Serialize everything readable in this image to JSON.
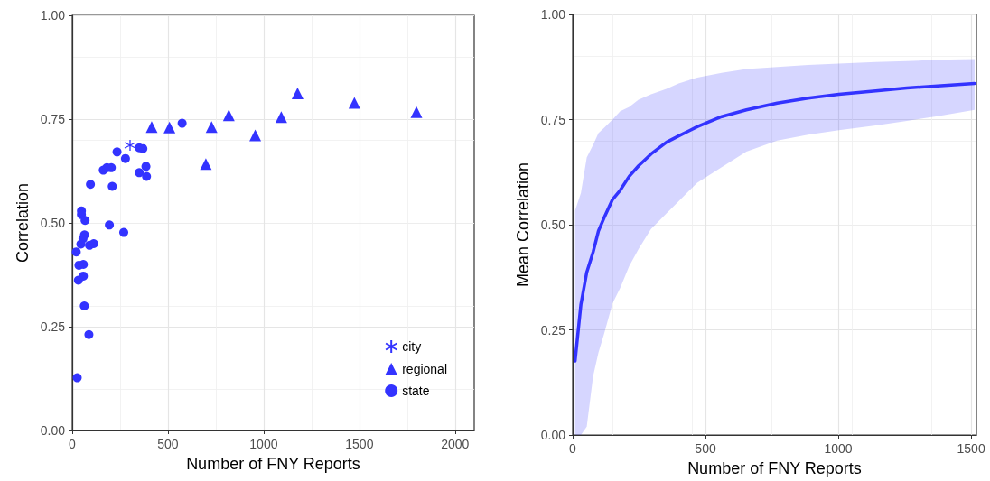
{
  "chart_data": [
    {
      "type": "scatter",
      "xlabel": "Number of FNY Reports",
      "ylabel": "Correlation",
      "xlim": [
        0,
        2100
      ],
      "xticks": [
        0,
        500,
        1000,
        1500,
        2000
      ],
      "ylim": [
        0,
        1
      ],
      "yticks": [
        {
          "value": 0,
          "label": "0.00"
        },
        {
          "value": 0.25,
          "label": "0.25"
        },
        {
          "value": 0.5,
          "label": "0.50"
        },
        {
          "value": 0.75,
          "label": "0.75"
        },
        {
          "value": 1,
          "label": "1.00"
        }
      ],
      "grid": true,
      "legend": "bottom right",
      "series": [
        {
          "name": "city",
          "color": "#3333ff",
          "marker": "cross",
          "x": [
            302
          ],
          "values": [
            0.687
          ]
        },
        {
          "name": "regional",
          "color": "#3333ff",
          "marker": "triangle",
          "x": [
            415,
            508,
            728,
            818,
            956,
            698,
            1092,
            1177,
            1474,
            1798
          ],
          "values": [
            0.731,
            0.73,
            0.731,
            0.759,
            0.711,
            0.642,
            0.755,
            0.812,
            0.789,
            0.767
          ]
        },
        {
          "name": "state",
          "color": "#3333ff",
          "marker": "circle",
          "x": [
            574,
            350,
            369,
            234,
            278,
            162,
            181,
            204,
            385,
            350,
            388,
            95,
            209,
            48,
            48,
            67,
            194,
            269,
            64,
            56,
            45,
            90,
            112,
            21,
            35,
            58,
            58,
            32,
            63,
            87,
            26
          ],
          "values": [
            0.74,
            0.681,
            0.679,
            0.671,
            0.655,
            0.627,
            0.633,
            0.633,
            0.636,
            0.621,
            0.612,
            0.593,
            0.588,
            0.529,
            0.52,
            0.506,
            0.495,
            0.477,
            0.471,
            0.462,
            0.449,
            0.446,
            0.45,
            0.43,
            0.398,
            0.4,
            0.372,
            0.362,
            0.3,
            0.231,
            0.127
          ]
        }
      ]
    },
    {
      "type": "line",
      "xlabel": "Number of FNY Reports",
      "ylabel": "Mean Correlation",
      "xlim": [
        0,
        1520
      ],
      "xticks": [
        0,
        500,
        1000,
        1500
      ],
      "ylim": [
        0,
        1
      ],
      "yticks": [
        {
          "value": 0,
          "label": "0.00"
        },
        {
          "value": 0.25,
          "label": "0.25"
        },
        {
          "value": 0.5,
          "label": "0.50"
        },
        {
          "value": 0.75,
          "label": "0.75"
        },
        {
          "value": 1,
          "label": "1.00"
        }
      ],
      "grid": true,
      "series": [
        {
          "color": "#3333ff",
          "x": [
            9,
            31,
            53,
            77,
            97,
            118,
            150,
            179,
            213,
            248,
            295,
            353,
            399,
            469,
            561,
            654,
            770,
            886,
            1002,
            1141,
            1258,
            1374,
            1513
          ],
          "values": [
            0.176,
            0.31,
            0.387,
            0.435,
            0.485,
            0.516,
            0.56,
            0.582,
            0.615,
            0.64,
            0.668,
            0.696,
            0.711,
            0.733,
            0.757,
            0.773,
            0.789,
            0.801,
            0.81,
            0.818,
            0.825,
            0.83,
            0.836
          ],
          "upper": [
            0.534,
            0.575,
            0.66,
            0.69,
            0.718,
            0.73,
            0.75,
            0.77,
            0.78,
            0.797,
            0.81,
            0.823,
            0.836,
            0.85,
            0.861,
            0.87,
            0.875,
            0.88,
            0.883,
            0.887,
            0.889,
            0.892,
            0.894
          ],
          "lower": [
            0,
            0,
            0.02,
            0.14,
            0.196,
            0.24,
            0.313,
            0.35,
            0.402,
            0.442,
            0.49,
            0.527,
            0.556,
            0.6,
            0.637,
            0.674,
            0.7,
            0.714,
            0.725,
            0.736,
            0.747,
            0.758,
            0.773
          ]
        }
      ]
    }
  ]
}
